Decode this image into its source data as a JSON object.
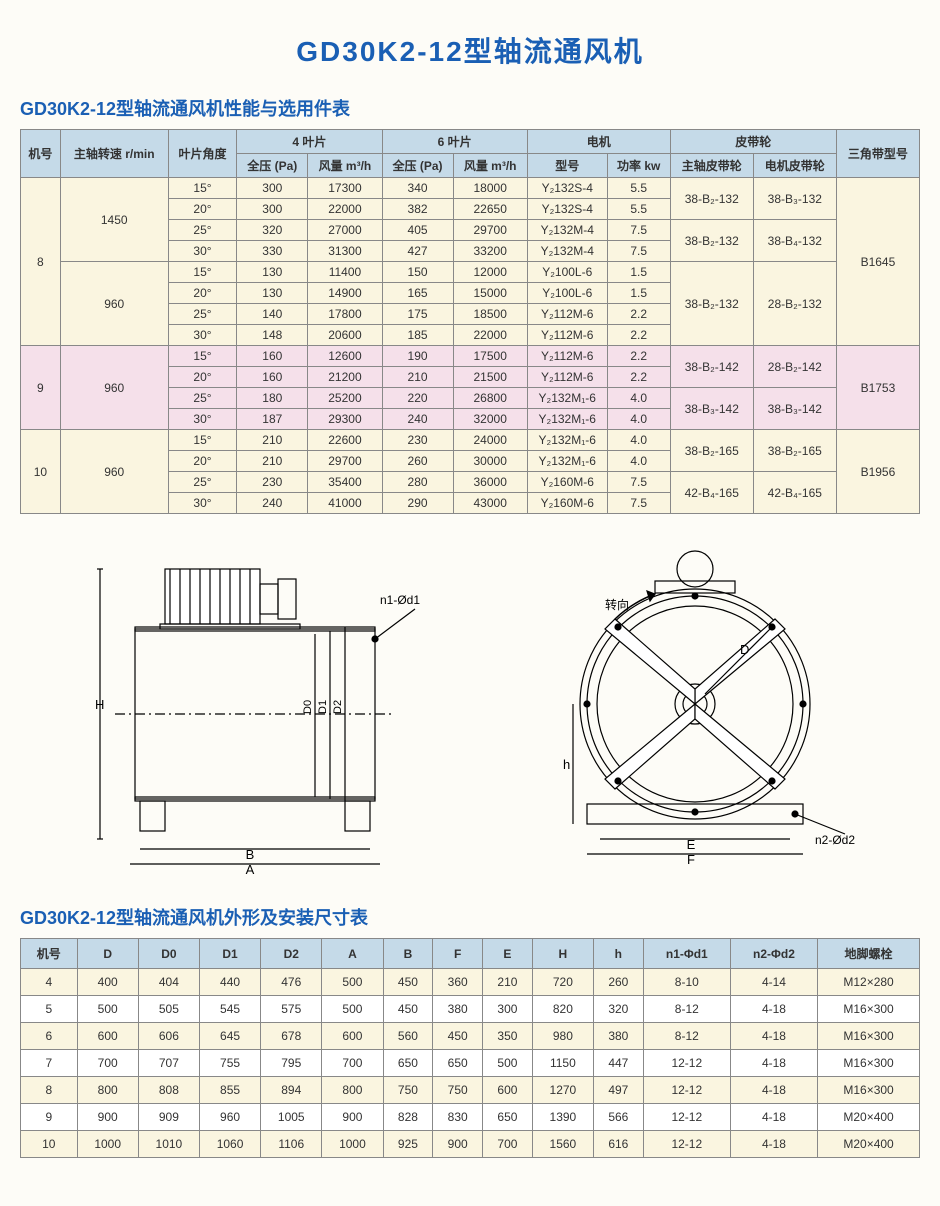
{
  "mainTitle": "GD30K2-12型轴流通风机",
  "section1Title": "GD30K2-12型轴流通风机性能与选用件表",
  "section2Title": "GD30K2-12型轴流通风机外形及安装尺寸表",
  "t1": {
    "headers": {
      "machNo": "机号",
      "spindleSpeed": "主轴转速 r/min",
      "bladeAngle": "叶片角度",
      "blade4": "4 叶片",
      "blade6": "6 叶片",
      "motor": "电机",
      "pulley": "皮带轮",
      "belt": "三角带型号",
      "fullPressPa": "全压 (Pa)",
      "airflow": "风量 m³/h",
      "motorModel": "型号",
      "power": "功率 kw",
      "spindlePulley": "主轴皮带轮",
      "motorPulley": "电机皮带轮"
    },
    "groups": [
      {
        "mach": "8",
        "rowClass": "row-cream",
        "belt": "B1645",
        "speedBlocks": [
          {
            "speed": "1450",
            "rows": [
              {
                "angle": "15°",
                "p4": "300",
                "f4": "17300",
                "p6": "340",
                "f6": "18000",
                "mm": "Y₂132S-4",
                "pw": "5.5"
              },
              {
                "angle": "20°",
                "p4": "300",
                "f4": "22000",
                "p6": "382",
                "f6": "22650",
                "mm": "Y₂132S-4",
                "pw": "5.5"
              },
              {
                "angle": "25°",
                "p4": "320",
                "f4": "27000",
                "p6": "405",
                "f6": "29700",
                "mm": "Y₂132M-4",
                "pw": "7.5"
              },
              {
                "angle": "30°",
                "p4": "330",
                "f4": "31300",
                "p6": "427",
                "f6": "33200",
                "mm": "Y₂132M-4",
                "pw": "7.5"
              }
            ],
            "pulleys": [
              {
                "sp": "38-B₂-132",
                "mp": "38-B₃-132"
              },
              {
                "sp": "38-B₂-132",
                "mp": "38-B₄-132"
              }
            ]
          },
          {
            "speed": "960",
            "rows": [
              {
                "angle": "15°",
                "p4": "130",
                "f4": "11400",
                "p6": "150",
                "f6": "12000",
                "mm": "Y₂100L-6",
                "pw": "1.5"
              },
              {
                "angle": "20°",
                "p4": "130",
                "f4": "14900",
                "p6": "165",
                "f6": "15000",
                "mm": "Y₂100L-6",
                "pw": "1.5"
              },
              {
                "angle": "25°",
                "p4": "140",
                "f4": "17800",
                "p6": "175",
                "f6": "18500",
                "mm": "Y₂112M-6",
                "pw": "2.2"
              },
              {
                "angle": "30°",
                "p4": "148",
                "f4": "20600",
                "p6": "185",
                "f6": "22000",
                "mm": "Y₂112M-6",
                "pw": "2.2"
              }
            ],
            "pulleys": [
              {
                "sp": "38-B₂-132",
                "mp": "28-B₂-132",
                "span": 4
              }
            ]
          }
        ]
      },
      {
        "mach": "9",
        "rowClass": "row-pink",
        "belt": "B1753",
        "speedBlocks": [
          {
            "speed": "960",
            "rows": [
              {
                "angle": "15°",
                "p4": "160",
                "f4": "12600",
                "p6": "190",
                "f6": "17500",
                "mm": "Y₂112M-6",
                "pw": "2.2"
              },
              {
                "angle": "20°",
                "p4": "160",
                "f4": "21200",
                "p6": "210",
                "f6": "21500",
                "mm": "Y₂112M-6",
                "pw": "2.2"
              },
              {
                "angle": "25°",
                "p4": "180",
                "f4": "25200",
                "p6": "220",
                "f6": "26800",
                "mm": "Y₂132M₁-6",
                "pw": "4.0"
              },
              {
                "angle": "30°",
                "p4": "187",
                "f4": "29300",
                "p6": "240",
                "f6": "32000",
                "mm": "Y₂132M₁-6",
                "pw": "4.0"
              }
            ],
            "pulleys": [
              {
                "sp": "38-B₂-142",
                "mp": "28-B₂-142"
              },
              {
                "sp": "38-B₃-142",
                "mp": "38-B₃-142"
              }
            ]
          }
        ]
      },
      {
        "mach": "10",
        "rowClass": "row-cream",
        "belt": "B1956",
        "speedBlocks": [
          {
            "speed": "960",
            "rows": [
              {
                "angle": "15°",
                "p4": "210",
                "f4": "22600",
                "p6": "230",
                "f6": "24000",
                "mm": "Y₂132M₁-6",
                "pw": "4.0"
              },
              {
                "angle": "20°",
                "p4": "210",
                "f4": "29700",
                "p6": "260",
                "f6": "30000",
                "mm": "Y₂132M₁-6",
                "pw": "4.0"
              },
              {
                "angle": "25°",
                "p4": "230",
                "f4": "35400",
                "p6": "280",
                "f6": "36000",
                "mm": "Y₂160M-6",
                "pw": "7.5"
              },
              {
                "angle": "30°",
                "p4": "240",
                "f4": "41000",
                "p6": "290",
                "f6": "43000",
                "mm": "Y₂160M-6",
                "pw": "7.5"
              }
            ],
            "pulleys": [
              {
                "sp": "38-B₂-165",
                "mp": "38-B₂-165"
              },
              {
                "sp": "42-B₄-165",
                "mp": "42-B₄-165"
              }
            ]
          }
        ]
      }
    ]
  },
  "t2": {
    "columns": [
      "机号",
      "D",
      "D0",
      "D1",
      "D2",
      "A",
      "B",
      "F",
      "E",
      "H",
      "h",
      "n1-Φd1",
      "n2-Φd2",
      "地脚螺栓"
    ],
    "rows": [
      [
        "4",
        "400",
        "404",
        "440",
        "476",
        "500",
        "450",
        "360",
        "210",
        "720",
        "260",
        "8-10",
        "4-14",
        "M12×280"
      ],
      [
        "5",
        "500",
        "505",
        "545",
        "575",
        "500",
        "450",
        "380",
        "300",
        "820",
        "320",
        "8-12",
        "4-18",
        "M16×300"
      ],
      [
        "6",
        "600",
        "606",
        "645",
        "678",
        "600",
        "560",
        "450",
        "350",
        "980",
        "380",
        "8-12",
        "4-18",
        "M16×300"
      ],
      [
        "7",
        "700",
        "707",
        "755",
        "795",
        "700",
        "650",
        "650",
        "500",
        "1150",
        "447",
        "12-12",
        "4-18",
        "M16×300"
      ],
      [
        "8",
        "800",
        "808",
        "855",
        "894",
        "800",
        "750",
        "750",
        "600",
        "1270",
        "497",
        "12-12",
        "4-18",
        "M16×300"
      ],
      [
        "9",
        "900",
        "909",
        "960",
        "1005",
        "900",
        "828",
        "830",
        "650",
        "1390",
        "566",
        "12-12",
        "4-18",
        "M20×400"
      ],
      [
        "10",
        "1000",
        "1010",
        "1060",
        "1106",
        "1000",
        "925",
        "900",
        "700",
        "1560",
        "616",
        "12-12",
        "4-18",
        "M20×400"
      ]
    ]
  },
  "diagramLabels": {
    "n1d1": "n1-Ød1",
    "D0": "D0",
    "D1": "D1",
    "D2": "D2",
    "H": "H",
    "B": "B",
    "A": "A",
    "rot": "转向",
    "D": "D",
    "h": "h",
    "E": "E",
    "F": "F",
    "n2d2": "n2-Ød2"
  }
}
